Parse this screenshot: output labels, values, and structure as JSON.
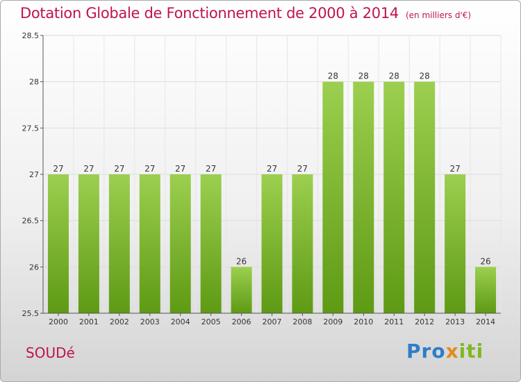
{
  "chart_data": {
    "type": "bar",
    "title": "Dotation Globale de Fonctionnement de 2000 à 2014",
    "subtitle": "(en milliers d'€)",
    "categories": [
      "2000",
      "2001",
      "2002",
      "2003",
      "2004",
      "2005",
      "2006",
      "2007",
      "2008",
      "2009",
      "2010",
      "2011",
      "2012",
      "2013",
      "2014"
    ],
    "values": [
      27,
      27,
      27,
      27,
      27,
      27,
      26,
      27,
      27,
      28,
      28,
      28,
      28,
      27,
      26
    ],
    "ylim": [
      25.5,
      28.5
    ],
    "yticks": [
      "25.5",
      "26",
      "26.5",
      "27",
      "27.5",
      "28",
      "28.5"
    ],
    "xlabel": "",
    "ylabel": "",
    "grid": true,
    "bar_color": "#8cc63f"
  },
  "commune": "SOUDé",
  "logo": {
    "part1": "Pro",
    "part2": "x",
    "part3": "iti"
  }
}
